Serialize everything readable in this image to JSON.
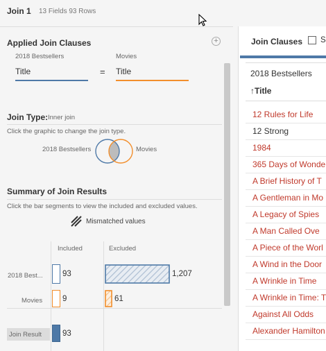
{
  "header": {
    "title": "Join 1",
    "meta": "13 Fields  93 Rows"
  },
  "clauses": {
    "title": "Applied Join Clauses",
    "add_icon": "plus-circle-icon",
    "left_table": "2018 Bestsellers",
    "right_table": "Movies",
    "left_field": "Title",
    "right_field": "Title",
    "operator": "=",
    "left_color": "#4e79a7",
    "right_color": "#f28e2b"
  },
  "join_type": {
    "label": "Join Type:",
    "value": "Inner join",
    "hint": "Click the graphic to change the join type.",
    "left_label": "2018 Bestsellers",
    "right_label": "Movies"
  },
  "summary": {
    "title": "Summary of Join Results",
    "hint": "Click the bar segments to view the included and excluded values.",
    "mismatch_label": "Mismatched values",
    "col_included": "Included",
    "col_excluded": "Excluded",
    "rows": [
      {
        "label": "2018 Best...",
        "included": 93,
        "excluded": 1207,
        "excluded_text": "1,207"
      },
      {
        "label": "Movies",
        "included": 9,
        "excluded": 61,
        "excluded_text": "61"
      },
      {
        "label": "Join Result",
        "included": 93
      }
    ]
  },
  "right_panel": {
    "title": "Join Clauses",
    "checkbox_label": "S",
    "table_name": "2018 Bestsellers",
    "field_name": "↑Title",
    "mismatch_color": "#c0392b",
    "values": [
      {
        "text": "12 Rules for Life",
        "mismatched": true
      },
      {
        "text": "12 Strong",
        "mismatched": false
      },
      {
        "text": "1984",
        "mismatched": true
      },
      {
        "text": "365 Days of Wonde",
        "mismatched": true
      },
      {
        "text": "A Brief History of T",
        "mismatched": true
      },
      {
        "text": "A Gentleman in Mo",
        "mismatched": true
      },
      {
        "text": "A Legacy of Spies",
        "mismatched": true
      },
      {
        "text": "A Man Called Ove",
        "mismatched": true
      },
      {
        "text": "A Piece of the Worl",
        "mismatched": true
      },
      {
        "text": "A Wind in the Door",
        "mismatched": true
      },
      {
        "text": "A Wrinkle in Time",
        "mismatched": true
      },
      {
        "text": "A Wrinkle in Time: T",
        "mismatched": true
      },
      {
        "text": "Against All Odds",
        "mismatched": true
      },
      {
        "text": "Alexander Hamilton",
        "mismatched": true
      }
    ]
  }
}
